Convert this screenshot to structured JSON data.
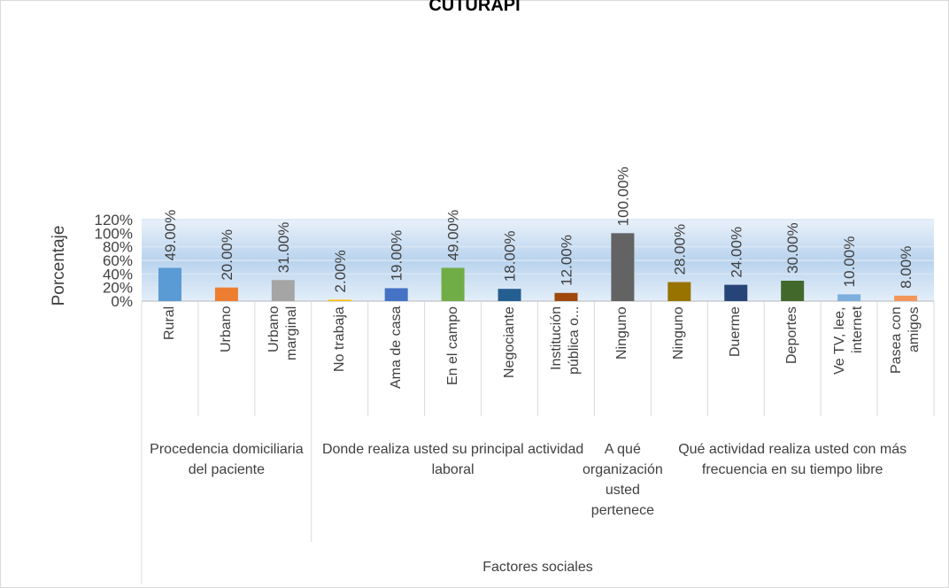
{
  "chart_data": {
    "type": "bar",
    "title": "CUTURAPI",
    "ylabel": "Porcentaje",
    "categories": [
      "Rural",
      "Urbano",
      "Urbano marginal",
      "No trabaja",
      "Ama de casa",
      "En el campo",
      "Negociante",
      "Institución pública o...",
      "Ninguno",
      "Ninguno",
      "Duerme",
      "Deportes",
      "Ve TV, lee, internet",
      "Pasea con amigos"
    ],
    "groups": [
      {
        "label": "Procedencia domiciliaria del paciente",
        "count": 3
      },
      {
        "label": "Donde realiza usted su principal actividad laboral",
        "count": 5
      },
      {
        "label": "A qué organización usted pertenece",
        "count": 1
      },
      {
        "label": "Qué actividad realiza usted con más frecuencia en su tiempo libre",
        "count": 5
      }
    ],
    "top_group": "Factores sociales",
    "values": [
      49,
      20,
      31,
      2,
      19,
      49,
      18,
      12,
      100,
      28,
      24,
      30,
      10,
      8
    ],
    "value_labels": [
      "49.00%",
      "20.00%",
      "31.00%",
      "2.00%",
      "19.00%",
      "49.00%",
      "18.00%",
      "12.00%",
      "100.00%",
      "28.00%",
      "24.00%",
      "30.00%",
      "10.00%",
      "8.00%"
    ],
    "colors": [
      "#5b9bd5",
      "#ed7d31",
      "#a5a5a5",
      "#ffc000",
      "#4472c4",
      "#70ad47",
      "#255e91",
      "#9e480e",
      "#636363",
      "#997300",
      "#264478",
      "#43682b",
      "#7cafdd",
      "#f1975a"
    ],
    "ylim": [
      0,
      120
    ],
    "yticks": [
      {
        "value": 0,
        "label": "0%"
      },
      {
        "value": 20,
        "label": "20%"
      },
      {
        "value": 40,
        "label": "40%"
      },
      {
        "value": 60,
        "label": "60%"
      },
      {
        "value": 80,
        "label": "80%"
      },
      {
        "value": 100,
        "label": "100%"
      },
      {
        "value": 120,
        "label": "120%"
      }
    ],
    "grid": true
  }
}
